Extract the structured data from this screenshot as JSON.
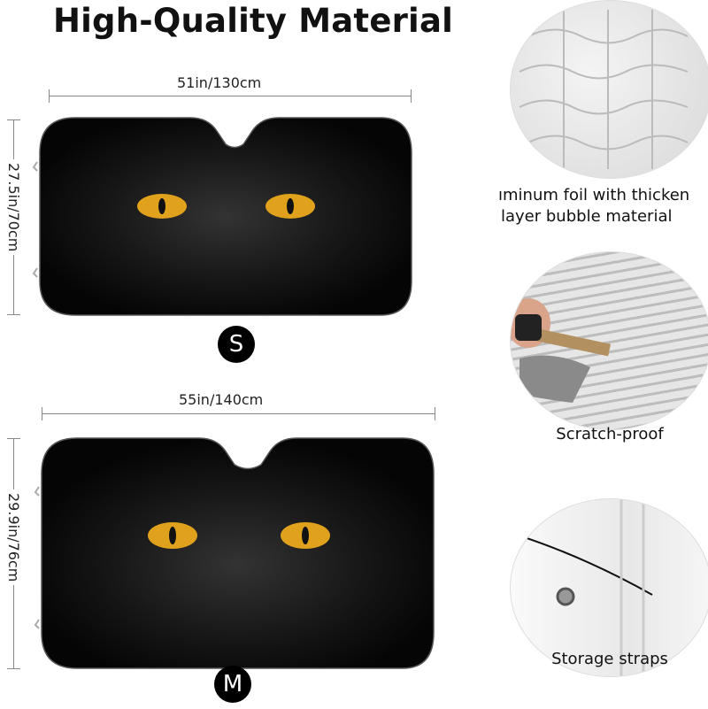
{
  "title": "High-Quality Material",
  "sizes": [
    {
      "label": "S",
      "width": "51in/130cm",
      "height": "27.5in/70cm"
    },
    {
      "label": "M",
      "width": "55in/140cm",
      "height": "29.9in/76cm"
    }
  ],
  "features": [
    {
      "line1": "ıminum foil with thicken",
      "line2": "layer bubble material",
      "icon": "bubble-foil-image"
    },
    {
      "line1": "Scratch-proof",
      "icon": "key-scratch-image"
    },
    {
      "line1": "Storage straps",
      "icon": "strap-image"
    }
  ],
  "colors": {
    "eye": "#e0a21c",
    "shade": "#0b0b0b",
    "foil": "#d9d9d9"
  }
}
